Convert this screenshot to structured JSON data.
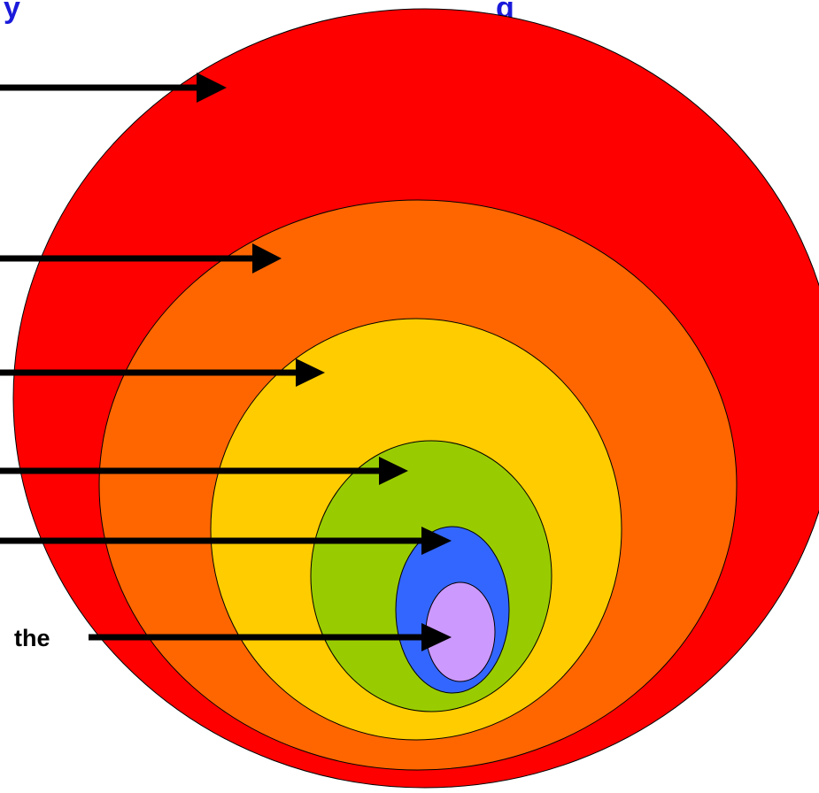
{
  "title": {
    "left_fragment": "y",
    "right_fragment": "g",
    "color": "#1a1adb"
  },
  "left_label": {
    "text": "the"
  },
  "colors": {
    "outline": "#000000",
    "arrow": "#000000",
    "ring_red": "#ff0000",
    "ring_orange": "#ff6600",
    "ring_yellow": "#ffcc00",
    "ring_green": "#99cc00",
    "ring_blue": "#3366ff",
    "ring_lavender": "#cc99ff"
  },
  "rings": [
    {
      "name": "red",
      "color_key": "ring_red"
    },
    {
      "name": "orange",
      "color_key": "ring_orange"
    },
    {
      "name": "yellow",
      "color_key": "ring_yellow"
    },
    {
      "name": "green",
      "color_key": "ring_green"
    },
    {
      "name": "blue",
      "color_key": "ring_blue"
    },
    {
      "name": "lavender",
      "color_key": "ring_lavender"
    }
  ],
  "arrows": [
    {
      "points_to": "red"
    },
    {
      "points_to": "orange"
    },
    {
      "points_to": "yellow"
    },
    {
      "points_to": "green"
    },
    {
      "points_to": "blue"
    },
    {
      "points_to": "lavender"
    }
  ]
}
